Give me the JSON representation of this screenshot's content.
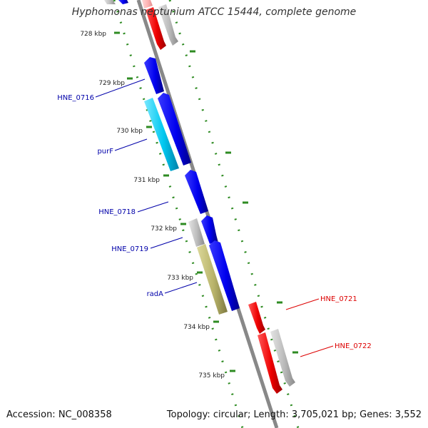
{
  "title": "Hyphomonas neptunium ATCC 15444, complete genome",
  "footer": {
    "accession": "Accession: NC_008358",
    "summary": "Topology: circular; Length: 3,705,021 bp; Genes: 3,552"
  },
  "colors": {
    "backbone": "#888888",
    "tick": "#2e8b22",
    "blue_gene": "#0000ee",
    "cyan_gene": "#00c8f0",
    "olive_gene": "#b8b36a",
    "red_gene": "#ee0000",
    "gray_gene": "#b8b8b8",
    "pink_gene": "#ffb3b3",
    "label_blue": "#0000aa",
    "label_red": "#dd0000",
    "footer_text": "#111111"
  },
  "ticks": {
    "labels": [
      "728 kbp",
      "729 kbp",
      "730 kbp",
      "731 kbp",
      "732 kbp",
      "733 kbp",
      "734 kbp",
      "735 kbp"
    ]
  },
  "gene_labels": [
    {
      "name": "HNE_0716",
      "strand": "minus"
    },
    {
      "name": "purF",
      "strand": "minus"
    },
    {
      "name": "HNE_0718",
      "strand": "minus"
    },
    {
      "name": "HNE_0719",
      "strand": "minus"
    },
    {
      "name": "radA",
      "strand": "minus"
    },
    {
      "name": "HNE_0721",
      "strand": "plus"
    },
    {
      "name": "HNE_0722",
      "strand": "plus"
    }
  ]
}
